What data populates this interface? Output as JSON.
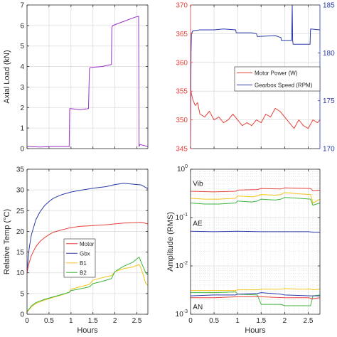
{
  "chart_data": [
    {
      "id": "axial",
      "type": "line",
      "xlabel": "",
      "ylabel": "Axial Load (kN)",
      "xlim": [
        0,
        2.75
      ],
      "ylim": [
        0,
        7
      ],
      "xticks": [
        0,
        0.5,
        1,
        1.5,
        2,
        2.5
      ],
      "xtick_labels": [],
      "yticks": [
        0,
        1,
        2,
        3,
        4,
        5,
        6,
        7
      ],
      "ytick_labels": [
        "0",
        "1",
        "2",
        "3",
        "4",
        "5",
        "6",
        "7"
      ],
      "grid": true,
      "series": [
        {
          "color": "#9b30c8",
          "x": [
            0,
            0.3,
            0.6,
            0.96,
            0.97,
            0.99,
            1.2,
            1.4,
            1.42,
            1.44,
            1.7,
            1.92,
            1.93,
            1.95,
            2.2,
            2.45,
            2.54,
            2.55,
            2.57,
            2.75
          ],
          "y": [
            0.1,
            0.08,
            0.1,
            0.1,
            1.95,
            1.95,
            1.9,
            1.95,
            3.9,
            3.95,
            4.0,
            4.1,
            5.9,
            6.0,
            6.2,
            6.4,
            6.45,
            0.1,
            0.2,
            0.1
          ]
        }
      ]
    },
    {
      "id": "power",
      "type": "line",
      "xlabel": "",
      "ylabel": "",
      "xlim": [
        0,
        2.75
      ],
      "ylim": [
        345,
        370
      ],
      "ylim_right": [
        170,
        185
      ],
      "xticks": [
        0,
        0.5,
        1,
        1.5,
        2,
        2.5
      ],
      "xtick_labels": [],
      "yticks": [
        345,
        350,
        355,
        360,
        365,
        370
      ],
      "ytick_labels": [
        "345",
        "350",
        "355",
        "360",
        "365",
        "370"
      ],
      "yticks_right": [
        170,
        175,
        180,
        185
      ],
      "ytick_labels_right": [
        "170",
        "175",
        "180",
        "185"
      ],
      "left_axis_color": "#e8413a",
      "right_axis_color": "#2b3aa8",
      "grid": true,
      "legend": {
        "placement": "center-right",
        "entries": [
          {
            "label": "Motor Power (W)",
            "color": "#e8413a"
          },
          {
            "label": "Gearbox Speed (RPM)",
            "color": "#2b3aa8"
          }
        ]
      },
      "series": [
        {
          "name": "Motor Power (W)",
          "axis": "left",
          "color": "#e8413a",
          "x": [
            0,
            0.02,
            0.05,
            0.1,
            0.15,
            0.2,
            0.3,
            0.4,
            0.5,
            0.6,
            0.7,
            0.8,
            0.9,
            1.0,
            1.1,
            1.2,
            1.3,
            1.4,
            1.5,
            1.6,
            1.7,
            1.8,
            1.9,
            2.0,
            2.1,
            2.2,
            2.3,
            2.4,
            2.5,
            2.6,
            2.7,
            2.75
          ],
          "y": [
            355.5,
            354.5,
            353.5,
            352.5,
            353.0,
            351.0,
            350.5,
            351.5,
            350.0,
            350.5,
            349.5,
            350.0,
            351.0,
            350.0,
            349.0,
            349.5,
            349.0,
            350.0,
            349.5,
            351.0,
            350.5,
            352.0,
            351.5,
            350.5,
            349.5,
            348.5,
            350.0,
            349.0,
            348.5,
            350.0,
            349.5,
            350.0
          ]
        },
        {
          "name": "Gearbox Speed (RPM)",
          "axis": "right",
          "color": "#2b3aa8",
          "x": [
            0,
            0.01,
            0.02,
            0.05,
            0.2,
            0.5,
            0.7,
            0.96,
            0.97,
            1.3,
            1.4,
            1.42,
            1.8,
            1.92,
            1.93,
            2.15,
            2.16,
            2.17,
            2.18,
            2.3,
            2.54,
            2.55,
            2.75
          ],
          "y": [
            170,
            180,
            182.0,
            182.3,
            182.4,
            182.4,
            182.5,
            182.4,
            182.1,
            182.1,
            182.0,
            181.7,
            181.8,
            181.6,
            181.3,
            181.3,
            185.0,
            181.3,
            180.9,
            180.9,
            180.9,
            182.5,
            182.4
          ]
        }
      ]
    },
    {
      "id": "temp",
      "type": "line",
      "xlabel": "Hours",
      "ylabel": "Relative Temp (°C)",
      "xlim": [
        0,
        2.75
      ],
      "ylim": [
        0,
        35
      ],
      "xticks": [
        0,
        0.5,
        1,
        1.5,
        2,
        2.5
      ],
      "xtick_labels": [
        "0",
        "0.5",
        "1",
        "1.5",
        "2",
        "2.5"
      ],
      "yticks": [
        0,
        5,
        10,
        15,
        20,
        25,
        30,
        35
      ],
      "ytick_labels": [
        "0",
        "5",
        "10",
        "15",
        "20",
        "25",
        "30",
        "35"
      ],
      "grid": true,
      "legend": {
        "placement": "center",
        "entries": [
          {
            "label": "Motor",
            "color": "#e8413a"
          },
          {
            "label": "Gbx",
            "color": "#2b3aa8"
          },
          {
            "label": "B1",
            "color": "#f2c418"
          },
          {
            "label": "B2",
            "color": "#3cb43c"
          }
        ]
      },
      "series": [
        {
          "name": "Motor",
          "color": "#e8413a",
          "x": [
            0,
            0.05,
            0.1,
            0.2,
            0.3,
            0.4,
            0.5,
            0.6,
            0.8,
            1.0,
            1.2,
            1.5,
            1.8,
            2.0,
            2.2,
            2.4,
            2.6,
            2.75
          ],
          "y": [
            10,
            12.5,
            14.2,
            16.3,
            17.6,
            18.5,
            19.2,
            19.8,
            20.4,
            20.9,
            21.2,
            21.4,
            21.6,
            21.8,
            22.0,
            22.1,
            22.2,
            21.8
          ]
        },
        {
          "name": "Gbx",
          "color": "#2b3aa8",
          "x": [
            0,
            0.05,
            0.1,
            0.2,
            0.3,
            0.4,
            0.5,
            0.6,
            0.8,
            1.0,
            1.2,
            1.5,
            1.8,
            2.0,
            2.2,
            2.4,
            2.6,
            2.75
          ],
          "y": [
            10.5,
            16.0,
            19.2,
            22.8,
            24.8,
            26.2,
            27.2,
            28.0,
            28.9,
            29.5,
            29.9,
            30.4,
            30.8,
            31.3,
            31.6,
            31.4,
            31.2,
            30.3
          ]
        },
        {
          "name": "B1",
          "color": "#f2c418",
          "x": [
            0,
            0.1,
            0.2,
            0.4,
            0.6,
            0.8,
            0.96,
            1.0,
            1.2,
            1.42,
            1.5,
            1.7,
            1.92,
            2.0,
            2.2,
            2.4,
            2.55,
            2.6,
            2.7,
            2.75
          ],
          "y": [
            0.5,
            1.8,
            2.6,
            3.4,
            4.1,
            4.7,
            5.3,
            6.0,
            6.6,
            7.2,
            8.2,
            8.8,
            9.3,
            10.3,
            11.0,
            11.4,
            12.0,
            11.0,
            7.5,
            7.0
          ]
        },
        {
          "name": "B2",
          "color": "#3cb43c",
          "x": [
            0,
            0.1,
            0.2,
            0.4,
            0.6,
            0.8,
            0.96,
            1.0,
            1.2,
            1.42,
            1.5,
            1.7,
            1.92,
            2.0,
            2.2,
            2.4,
            2.55,
            2.6,
            2.7,
            2.75
          ],
          "y": [
            0.6,
            2.0,
            2.8,
            3.6,
            4.2,
            4.8,
            5.3,
            5.7,
            6.1,
            6.6,
            7.4,
            7.9,
            8.6,
            10.3,
            11.6,
            12.5,
            13.8,
            12.5,
            10.0,
            9.5
          ]
        }
      ]
    },
    {
      "id": "amplitude",
      "type": "line",
      "scale": "log",
      "xlabel": "Hours",
      "ylabel": "Amplitude (RMS)",
      "xlim": [
        0,
        2.75
      ],
      "ylim": [
        0.001,
        1
      ],
      "xticks": [
        0,
        0.5,
        1,
        1.5,
        2,
        2.5
      ],
      "xtick_labels": [
        "0",
        "0.5",
        "1",
        "1.5",
        "2",
        "2.5"
      ],
      "yticks": [
        0.001,
        0.01,
        0.1,
        1
      ],
      "ytick_base": "10",
      "ytick_exponents": [
        "-3",
        "-2",
        "-1",
        "0"
      ],
      "grid": true,
      "annotations": [
        {
          "text": "Vib",
          "x": 0.05,
          "y": 0.5
        },
        {
          "text": "AE",
          "x": 0.05,
          "y": 0.075
        },
        {
          "text": "AN",
          "x": 0.05,
          "y": 0.0014
        }
      ],
      "series": [
        {
          "color": "#e8413a",
          "x": [
            0,
            0.5,
            0.96,
            1.0,
            1.42,
            1.5,
            1.92,
            2.0,
            2.55,
            2.6,
            2.75
          ],
          "y": [
            0.35,
            0.34,
            0.35,
            0.37,
            0.38,
            0.4,
            0.39,
            0.41,
            0.4,
            0.36,
            0.37
          ]
        },
        {
          "color": "#f2c418",
          "x": [
            0,
            0.3,
            0.6,
            0.96,
            1.0,
            1.3,
            1.42,
            1.5,
            1.8,
            1.92,
            2.0,
            2.3,
            2.55,
            2.6,
            2.75
          ],
          "y": [
            0.25,
            0.24,
            0.24,
            0.25,
            0.28,
            0.27,
            0.28,
            0.3,
            0.29,
            0.3,
            0.33,
            0.31,
            0.3,
            0.2,
            0.24
          ]
        },
        {
          "color": "#3cb43c",
          "x": [
            0,
            0.3,
            0.6,
            0.96,
            1.0,
            1.3,
            1.42,
            1.5,
            1.8,
            1.92,
            2.0,
            2.3,
            2.55,
            2.6,
            2.75
          ],
          "y": [
            0.2,
            0.19,
            0.19,
            0.2,
            0.22,
            0.21,
            0.22,
            0.24,
            0.23,
            0.24,
            0.26,
            0.25,
            0.24,
            0.18,
            0.2
          ]
        },
        {
          "color": "#2b3aa8",
          "x": [
            0,
            0.5,
            1.0,
            1.5,
            2.0,
            2.5,
            2.6,
            2.75
          ],
          "y": [
            0.052,
            0.051,
            0.052,
            0.051,
            0.051,
            0.051,
            0.05,
            0.05
          ]
        },
        {
          "color": "#f2c418",
          "x": [
            0,
            0.5,
            0.96,
            1.0,
            1.42,
            1.5,
            1.92,
            2.0,
            2.3,
            2.55,
            2.6,
            2.75
          ],
          "y": [
            0.0031,
            0.0031,
            0.0031,
            0.0032,
            0.0032,
            0.0033,
            0.0033,
            0.0034,
            0.0033,
            0.0033,
            0.0032,
            0.0033
          ]
        },
        {
          "color": "#3cb43c",
          "x": [
            0,
            0.5,
            0.96,
            1.0,
            1.42,
            1.5,
            1.92,
            2.0,
            2.3,
            2.55,
            2.6,
            2.75
          ],
          "y": [
            0.0028,
            0.0028,
            0.0029,
            0.0026,
            0.0025,
            0.0016,
            0.0016,
            0.0015,
            0.0015,
            0.0015,
            0.0024,
            0.0025
          ]
        },
        {
          "color": "#e8413a",
          "x": [
            0,
            0.5,
            1.0,
            1.5,
            2.0,
            2.5,
            2.6,
            2.75
          ],
          "y": [
            0.0022,
            0.0022,
            0.0023,
            0.0023,
            0.0022,
            0.0022,
            0.0021,
            0.0022
          ]
        },
        {
          "color": "#2b3aa8",
          "x": [
            0,
            0.5,
            0.96,
            1.0,
            1.42,
            1.5,
            1.92,
            2.0,
            2.55,
            2.6,
            2.75
          ],
          "y": [
            0.0024,
            0.0025,
            0.0025,
            0.0026,
            0.0027,
            0.0028,
            0.0026,
            0.0025,
            0.0024,
            0.0024,
            0.0024
          ]
        }
      ]
    }
  ]
}
